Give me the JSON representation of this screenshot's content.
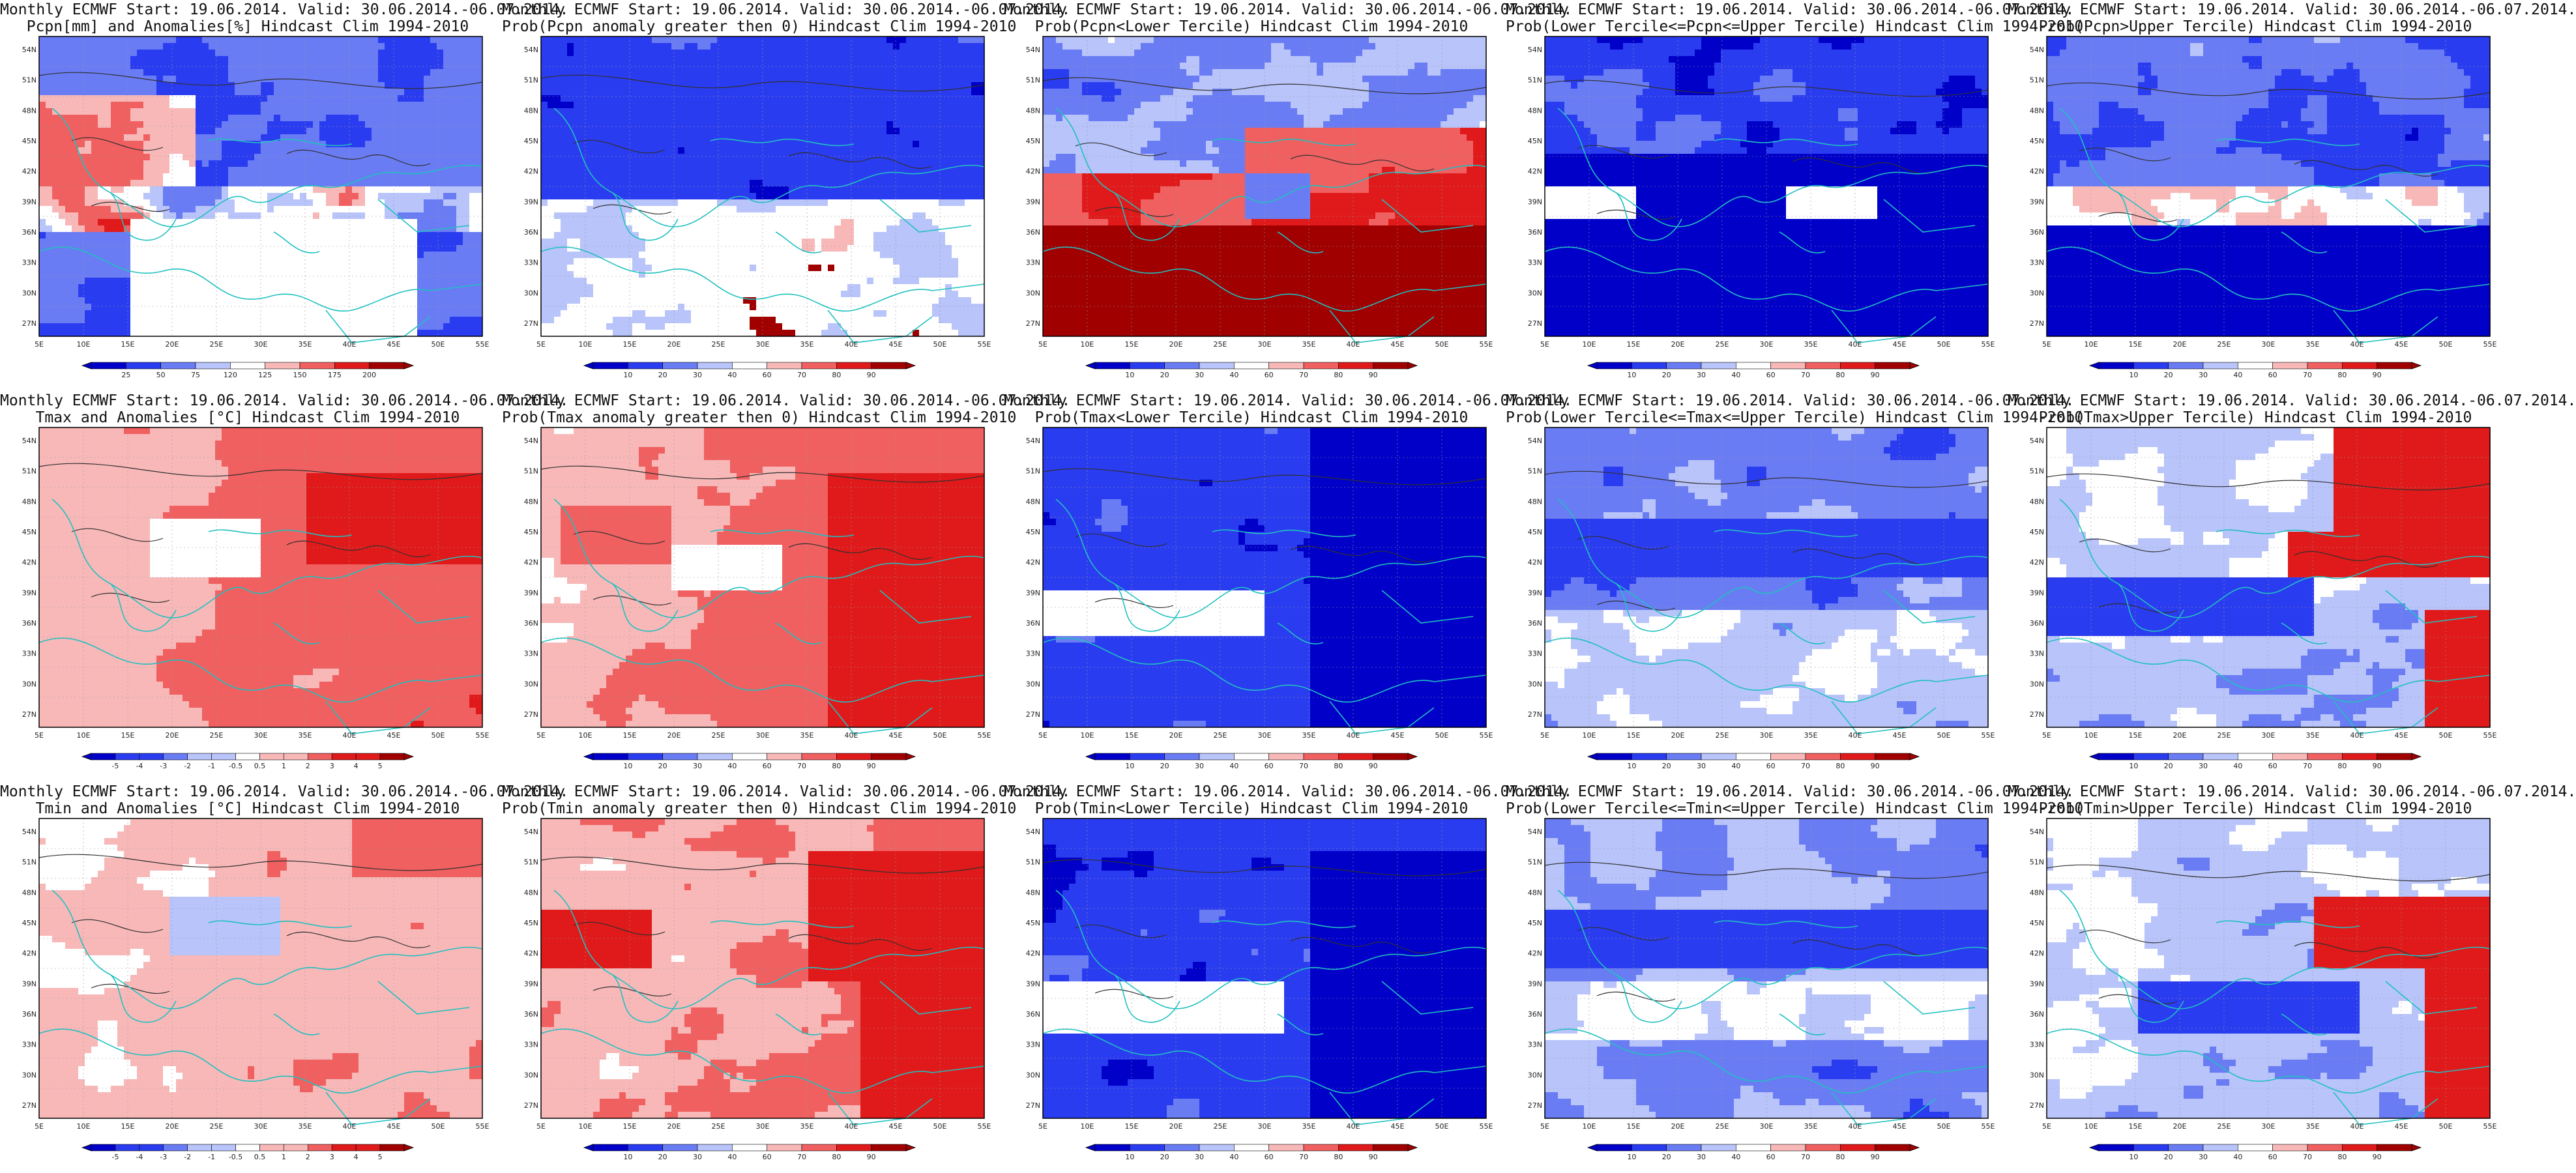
{
  "axes": {
    "lon_ticks": [
      "5E",
      "10E",
      "15E",
      "20E",
      "25E",
      "30E",
      "35E",
      "40E",
      "45E",
      "50E",
      "55E"
    ],
    "lat_ticks": [
      "54N",
      "51N",
      "48N",
      "45N",
      "42N",
      "39N",
      "36N",
      "33N",
      "30N",
      "27N"
    ]
  },
  "colors": {
    "deep_blue": "#0000c8",
    "blue": "#2a3cf0",
    "mid_blue": "#6a7cf4",
    "light_blue": "#b8c4fa",
    "white": "#ffffff",
    "light_red": "#f8b8b8",
    "mid_red": "#f06060",
    "red": "#e01a1a",
    "deep_red": "#a00000",
    "land_line": "#20c0c0",
    "contour": "#303030"
  },
  "legends": {
    "pcpn_anom": [
      "25",
      "50",
      "75",
      "120",
      "125",
      "150",
      "175",
      "200"
    ],
    "prob": [
      "10",
      "20",
      "30",
      "40",
      "60",
      "70",
      "80",
      "90"
    ],
    "temp_anom": [
      "-5",
      "-4",
      "-3",
      "-2",
      "-1",
      "-0.5",
      "0.5",
      "1",
      "2",
      "3",
      "4",
      "5"
    ]
  },
  "panels": [
    {
      "title1": "Monthly ECMWF Start: 19.06.2014. Valid: 30.06.2014.-06.07.2014.",
      "title2": "Pcpn[mm] and Anomalies[%] Hindcast Clim 1994-2010",
      "legend": "pcpn_anom",
      "field": "pcpn_anom"
    },
    {
      "title1": "Monthly ECMWF Start: 19.06.2014. Valid: 30.06.2014.-06.07.2014.",
      "title2": "Prob(Pcpn anomaly greater then 0) Hindcast Clim 1994-2010",
      "legend": "prob",
      "field": "pcpn_gt0"
    },
    {
      "title1": "Monthly ECMWF Start: 19.06.2014. Valid: 30.06.2014.-06.07.2014.",
      "title2": "Prob(Pcpn<Lower Tercile) Hindcast Clim 1994-2010",
      "legend": "prob",
      "field": "pcpn_lt"
    },
    {
      "title1": "Monthly ECMWF Start: 19.06.2014. Valid: 30.06.2014.-06.07.2014.",
      "title2": "Prob(Lower Tercile<=Pcpn<=Upper Tercile) Hindcast Clim 1994-2010",
      "legend": "prob",
      "field": "pcpn_mid"
    },
    {
      "title1": "Monthly ECMWF Start: 19.06.2014. Valid: 30.06.2014.-06.07.2014.",
      "title2": "Prob(Pcpn>Upper Tercile) Hindcast Clim 1994-2010",
      "legend": "prob",
      "field": "pcpn_ut"
    },
    {
      "title1": "Monthly ECMWF Start: 19.06.2014. Valid: 30.06.2014.-06.07.2014.",
      "title2": "Tmax and Anomalies [°C] Hindcast Clim 1994-2010",
      "legend": "temp_anom",
      "field": "tmax_anom"
    },
    {
      "title1": "Monthly ECMWF Start: 19.06.2014. Valid: 30.06.2014.-06.07.2014.",
      "title2": "Prob(Tmax anomaly greater then 0) Hindcast Clim 1994-2010",
      "legend": "prob",
      "field": "tmax_gt0"
    },
    {
      "title1": "Monthly ECMWF Start: 19.06.2014. Valid: 30.06.2014.-06.07.2014.",
      "title2": "Prob(Tmax<Lower Tercile) Hindcast Clim 1994-2010",
      "legend": "prob",
      "field": "tmax_lt"
    },
    {
      "title1": "Monthly ECMWF Start: 19.06.2014. Valid: 30.06.2014.-06.07.2014.",
      "title2": "Prob(Lower Tercile<=Tmax<=Upper Tercile) Hindcast Clim 1994-2010",
      "legend": "prob",
      "field": "tmax_mid"
    },
    {
      "title1": "Monthly ECMWF Start: 19.06.2014. Valid: 30.06.2014.-06.07.2014.",
      "title2": "Prob(Tmax>Upper Tercile) Hindcast Clim 1994-2010",
      "legend": "prob",
      "field": "tmax_ut"
    },
    {
      "title1": "Monthly ECMWF Start: 19.06.2014. Valid: 30.06.2014.-06.07.2014.",
      "title2": "Tmin and Anomalies [°C] Hindcast Clim 1994-2010",
      "legend": "temp_anom",
      "field": "tmin_anom"
    },
    {
      "title1": "Monthly ECMWF Start: 19.06.2014. Valid: 30.06.2014.-06.07.2014.",
      "title2": "Prob(Tmin anomaly greater then 0) Hindcast Clim 1994-2010",
      "legend": "prob",
      "field": "tmin_gt0"
    },
    {
      "title1": "Monthly ECMWF Start: 19.06.2014. Valid: 30.06.2014.-06.07.2014.",
      "title2": "Prob(Tmin<Lower Tercile) Hindcast Clim 1994-2010",
      "legend": "prob",
      "field": "tmin_lt"
    },
    {
      "title1": "Monthly ECMWF Start: 19.06.2014. Valid: 30.06.2014.-06.07.2014.",
      "title2": "Prob(Lower Tercile<=Tmin<=Upper Tercile) Hindcast Clim 1994-2010",
      "legend": "prob",
      "field": "tmin_mid"
    },
    {
      "title1": "Monthly ECMWF Start: 19.06.2014. Valid: 30.06.2014.-06.07.2014.",
      "title2": "Prob(Tmin>Upper Tercile) Hindcast Clim 1994-2010",
      "legend": "prob",
      "field": "tmin_ut"
    }
  ]
}
